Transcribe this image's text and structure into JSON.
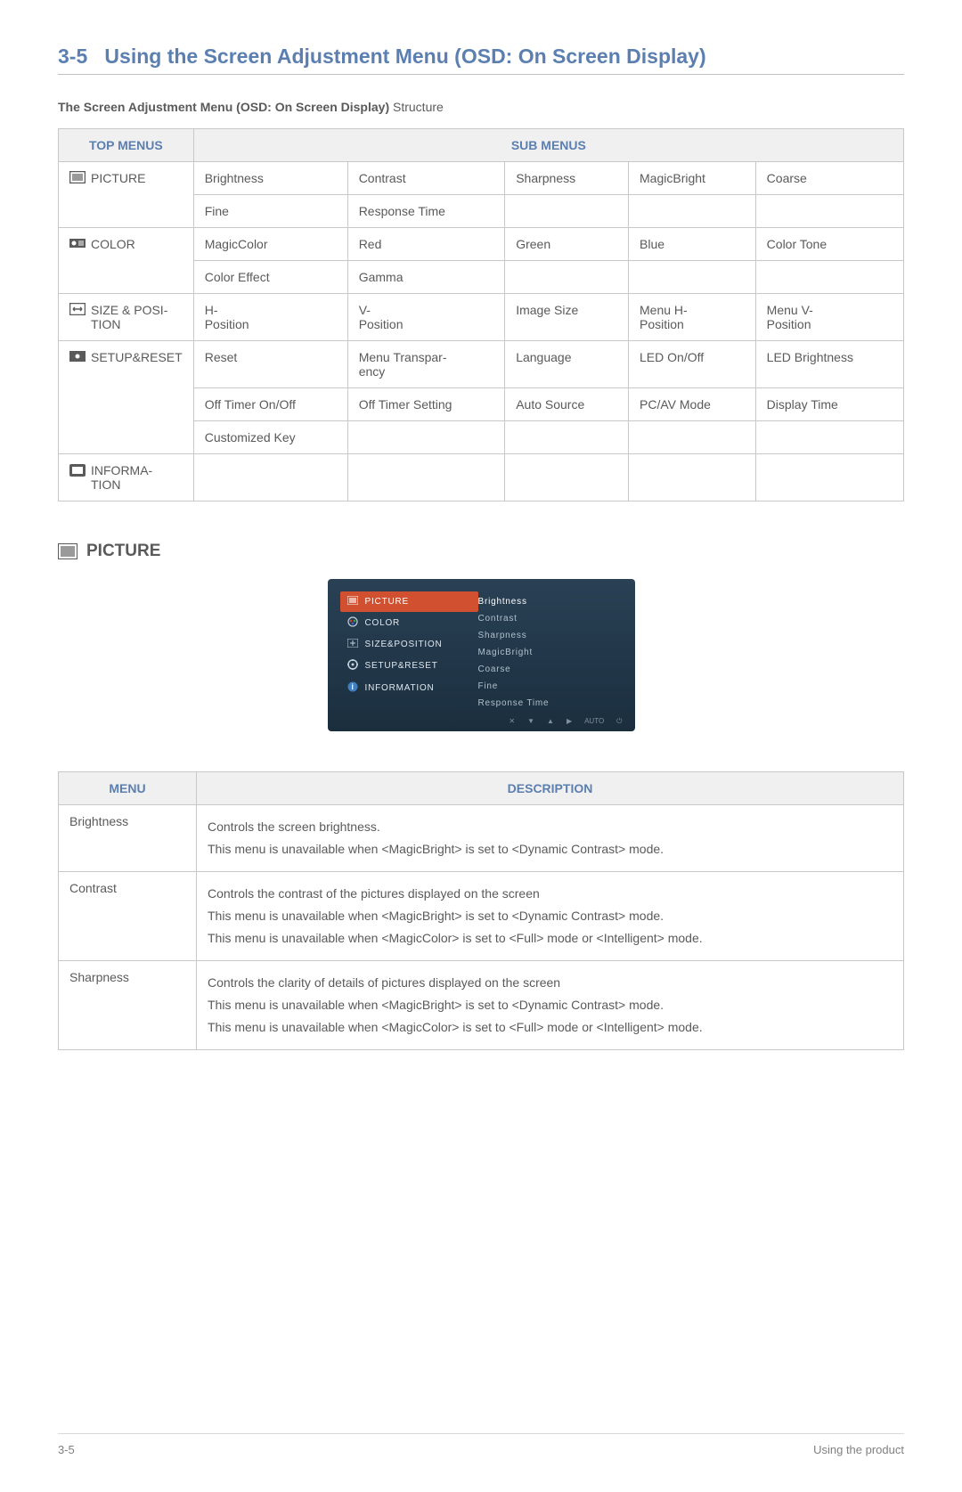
{
  "section": {
    "number": "3-5",
    "title": "Using the Screen Adjustment Menu (OSD: On Screen Display)"
  },
  "subtitle": {
    "bold": "The Screen Adjustment Menu (OSD: On Screen Display)",
    "rest": " Structure"
  },
  "structure_table": {
    "header_top": "TOP MENUS",
    "header_sub": "SUB MENUS",
    "rows": [
      {
        "icon": "picture",
        "label": "PICTURE",
        "subs": [
          [
            "Brightness",
            "Contrast",
            "Sharpness",
            "MagicBright",
            "Coarse"
          ],
          [
            "Fine",
            "Response Time",
            "",
            "",
            ""
          ]
        ]
      },
      {
        "icon": "color",
        "label": "COLOR",
        "subs": [
          [
            "MagicColor",
            "Red",
            "Green",
            "Blue",
            "Color Tone"
          ],
          [
            "Color Effect",
            "Gamma",
            "",
            "",
            ""
          ]
        ]
      },
      {
        "icon": "size",
        "label": "SIZE & POSI-TION",
        "subs": [
          [
            "H-Position",
            "V-Position",
            "Image Size",
            "Menu H-Position",
            "Menu V-Position"
          ]
        ]
      },
      {
        "icon": "setup",
        "label": "SETUP&RESET",
        "subs": [
          [
            "Reset",
            "Menu Transpar-ency",
            "Language",
            "LED On/Off",
            "LED Brightness"
          ],
          [
            "Off Timer On/Off",
            "Off Timer Setting",
            "Auto Source",
            "PC/AV Mode",
            "Display Time"
          ],
          [
            "Customized Key",
            "",
            "",
            "",
            ""
          ]
        ]
      },
      {
        "icon": "info",
        "label": "INFORMA-TION",
        "subs": [
          [
            "",
            "",
            "",
            "",
            ""
          ]
        ]
      }
    ]
  },
  "picture_heading": "PICTURE",
  "osd": {
    "menus": [
      {
        "label": "PICTURE",
        "active": true
      },
      {
        "label": "COLOR",
        "active": false
      },
      {
        "label": "SIZE&POSITION",
        "active": false
      },
      {
        "label": "SETUP&RESET",
        "active": false
      },
      {
        "label": "INFORMATION",
        "active": false
      }
    ],
    "subs": [
      "Brightness",
      "Contrast",
      "Sharpness",
      "MagicBright",
      "Coarse",
      "Fine",
      "Response Time"
    ],
    "footer": [
      "✕",
      "▼",
      "▲",
      "▶",
      "AUTO",
      "⏻"
    ],
    "colors": {
      "bg_top": "#2a4155",
      "bg_bottom": "#1a2e3e",
      "active": "#d05030",
      "text": "#e0e8ef",
      "sub_dim": "#b0c0cc"
    }
  },
  "desc_table": {
    "header_menu": "MENU",
    "header_desc": "DESCRIPTION",
    "rows": [
      {
        "menu": "Brightness",
        "desc": [
          "Controls the screen brightness.",
          "This menu is unavailable when <MagicBright> is set to <Dynamic Contrast> mode."
        ]
      },
      {
        "menu": "Contrast",
        "desc": [
          "Controls the contrast of the pictures displayed on the screen",
          "This menu is unavailable when <MagicBright> is set to <Dynamic Contrast> mode.",
          "This menu is unavailable when <MagicColor> is set to <Full> mode or <Intelligent> mode."
        ]
      },
      {
        "menu": "Sharpness",
        "desc": [
          "Controls the clarity of details of pictures displayed on the screen",
          "This menu is unavailable when <MagicBright> is set to <Dynamic Contrast> mode.",
          "This menu is unavailable when <MagicColor> is set to <Full> mode or <Intelligent> mode."
        ]
      }
    ]
  },
  "footer": {
    "left": "3-5",
    "right": "Using the product"
  },
  "colors": {
    "heading": "#5b7fb0",
    "text": "#5a5a5a",
    "border": "#c8c8c8",
    "th_bg": "#f0f0f0"
  }
}
